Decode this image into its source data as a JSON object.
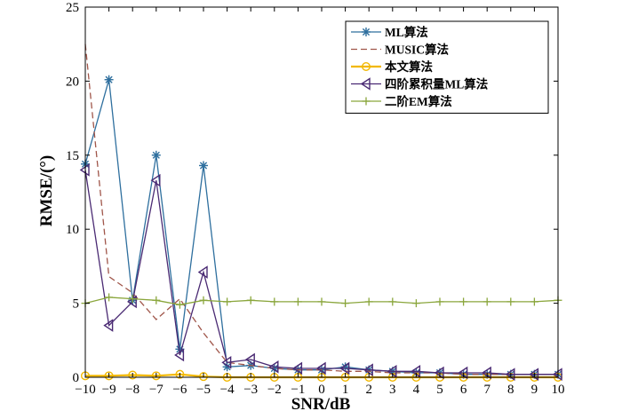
{
  "chart_data": {
    "type": "line",
    "xlabel": "SNR/dB",
    "ylabel": "RMSE/(°)",
    "xlim": [
      -10,
      10
    ],
    "ylim": [
      0,
      25
    ],
    "x_ticks": [
      -10,
      -9,
      -8,
      -7,
      -6,
      -5,
      -4,
      -3,
      -2,
      -1,
      0,
      1,
      2,
      3,
      4,
      5,
      6,
      7,
      8,
      9,
      10
    ],
    "y_ticks": [
      0,
      5,
      10,
      15,
      20,
      25
    ],
    "x_tick_labels": [
      "−10",
      "−9",
      "−8",
      "−7",
      "−6",
      "−5",
      "−4",
      "−3",
      "−2",
      "−1",
      "0",
      "1",
      "2",
      "3",
      "4",
      "5",
      "6",
      "7",
      "8",
      "9",
      "10"
    ],
    "y_tick_labels": [
      "0",
      "5",
      "10",
      "15",
      "20",
      "25"
    ],
    "grid": false,
    "legend_position": "top-right",
    "x": [
      -10,
      -9,
      -8,
      -7,
      -6,
      -5,
      -4,
      -3,
      -2,
      -1,
      0,
      1,
      2,
      3,
      4,
      5,
      6,
      7,
      8,
      9,
      10
    ],
    "series": [
      {
        "name": "ML算法",
        "color": "#2e6f9e",
        "marker": "asterisk",
        "dash": "solid",
        "values": [
          14.4,
          20.1,
          5.2,
          15.0,
          1.9,
          14.3,
          0.7,
          0.8,
          0.6,
          0.5,
          0.5,
          0.7,
          0.5,
          0.4,
          0.3,
          0.3,
          0.2,
          0.2,
          0.2,
          0.2,
          0.2
        ]
      },
      {
        "name": "MUSIC算法",
        "color": "#a0564a",
        "marker": "none",
        "dash": "dashed",
        "values": [
          22.5,
          6.8,
          5.7,
          3.9,
          5.3,
          3.0,
          1.0,
          0.8,
          0.6,
          0.5,
          0.5,
          0.4,
          0.4,
          0.3,
          0.3,
          0.3,
          0.2,
          0.2,
          0.2,
          0.2,
          0.2
        ]
      },
      {
        "name": "本文算法",
        "color": "#f2b800",
        "marker": "circle",
        "dash": "solid",
        "values": [
          0.1,
          0.1,
          0.15,
          0.1,
          0.2,
          0.05,
          0.0,
          0.0,
          0.0,
          0.0,
          0.0,
          0.0,
          0.0,
          0.0,
          0.0,
          0.0,
          0.0,
          0.0,
          0.0,
          0.0,
          0.0
        ]
      },
      {
        "name": "四阶累积量ML算法",
        "color": "#4a2a73",
        "marker": "triangle-left",
        "dash": "solid",
        "values": [
          14.0,
          3.5,
          5.1,
          13.3,
          1.5,
          7.1,
          1.0,
          1.2,
          0.7,
          0.6,
          0.6,
          0.6,
          0.5,
          0.4,
          0.4,
          0.3,
          0.3,
          0.3,
          0.2,
          0.2,
          0.2
        ]
      },
      {
        "name": "二阶EM算法",
        "color": "#8aa63c",
        "marker": "plus",
        "dash": "solid",
        "values": [
          5.0,
          5.4,
          5.3,
          5.2,
          4.9,
          5.2,
          5.1,
          5.2,
          5.1,
          5.1,
          5.1,
          5.0,
          5.1,
          5.1,
          5.0,
          5.1,
          5.1,
          5.1,
          5.1,
          5.1,
          5.2
        ]
      }
    ]
  }
}
